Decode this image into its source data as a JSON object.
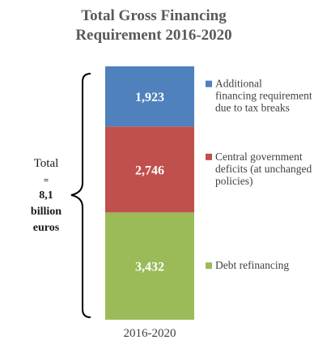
{
  "chart_data": {
    "type": "bar",
    "stacked": true,
    "title_lines": [
      "Total Gross Financing",
      "Requirement 2016-2020"
    ],
    "categories": [
      "2016-2020"
    ],
    "series": [
      {
        "name": "Debt refinancing",
        "values": [
          3432
        ],
        "label": "3,432",
        "color": "#9BBB59",
        "legend_lines": [
          "Debt refinancing"
        ]
      },
      {
        "name": "Central government deficits (at unchanged policies)",
        "values": [
          2746
        ],
        "label": "2,746",
        "color": "#C0504D",
        "legend_lines": [
          "Central government",
          "deficits (at unchanged",
          "policies)"
        ]
      },
      {
        "name": "Additional financing requirement due to tax breaks",
        "values": [
          1923
        ],
        "label": "1,923",
        "color": "#4F81BD",
        "legend_lines": [
          "Additional",
          "financing requirement",
          "due to tax breaks"
        ]
      }
    ],
    "annotation": {
      "line1": "Total",
      "line2": "=",
      "line3": "8,1",
      "line4": "billion",
      "line5": "euros"
    },
    "legend_position": "right",
    "grid": false
  }
}
